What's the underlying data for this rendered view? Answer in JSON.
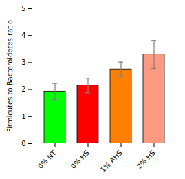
{
  "chart_data": {
    "type": "bar",
    "categories": [
      "0% NT",
      "0% HS",
      "1% AHS",
      "2% HS"
    ],
    "values": [
      1.93,
      2.15,
      2.75,
      3.3
    ],
    "errors": [
      0.3,
      0.27,
      0.27,
      0.52
    ],
    "colors": [
      "#00FF00",
      "#FF0000",
      "#FF8000",
      "#FF9980"
    ],
    "ylabel": "Firmicutes to Bacteroidetes ratio",
    "ylim": [
      0,
      5
    ],
    "yticks": [
      0,
      1,
      2,
      3,
      4,
      5
    ],
    "grid": false
  }
}
